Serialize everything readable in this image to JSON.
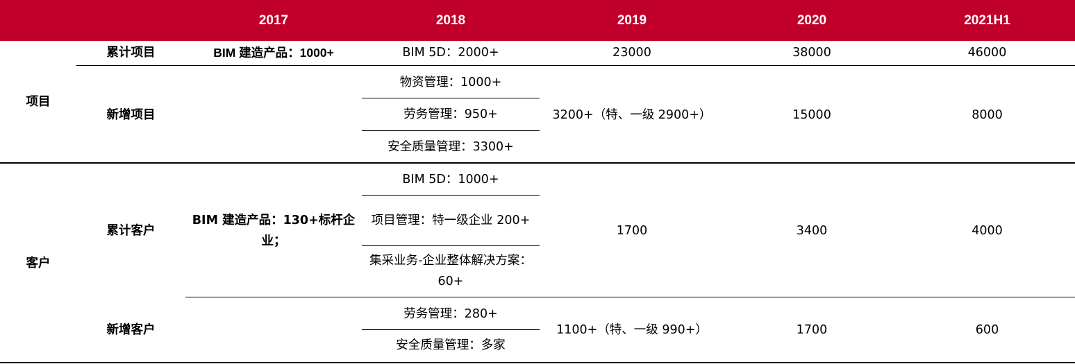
{
  "header": {
    "years": [
      "2017",
      "2018",
      "2019",
      "2020",
      "2021H1"
    ]
  },
  "groups": {
    "project": {
      "label": "项目"
    },
    "customer": {
      "label": "客户"
    }
  },
  "rows": {
    "cumulative_projects": {
      "label": "累计项目",
      "y2017": "BIM 建造产品：1000+",
      "y2018": "BIM 5D：2000+",
      "y2019": "23000",
      "y2020": "38000",
      "y2021h1": "46000"
    },
    "new_projects": {
      "label": "新增项目",
      "y2018": [
        "物资管理：1000+",
        "劳务管理：950+",
        "安全质量管理：3300+"
      ],
      "y2019": "3200+（特、一级 2900+）",
      "y2020": "15000",
      "y2021h1": "8000"
    },
    "cumulative_customers": {
      "label": "累计客户",
      "y2017": "BIM 建造产品：130+标杆企业；",
      "y2018": [
        "BIM 5D：1000+",
        "项目管理：特一级企业 200+",
        "集采业务-企业整体解决方案：60+"
      ],
      "y2019": "1700",
      "y2020": "3400",
      "y2021h1": "4000"
    },
    "new_customers": {
      "label": "新增客户",
      "y2018": [
        "劳务管理：280+",
        "安全质量管理：多家"
      ],
      "y2019": "1100+（特、一级 990+）",
      "y2020": "1700",
      "y2021h1": "600"
    }
  }
}
